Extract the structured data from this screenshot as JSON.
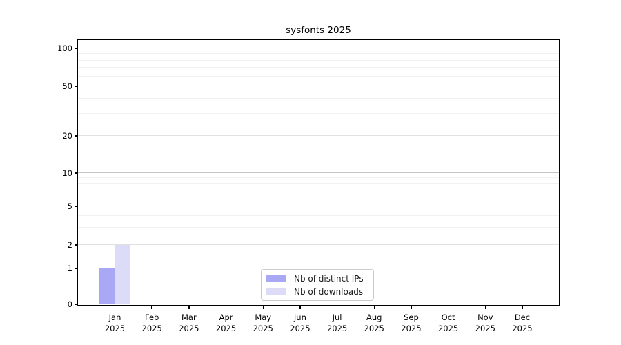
{
  "window": {
    "background": "#ffffff"
  },
  "chart_data": {
    "type": "bar",
    "title": "sysfonts 2025",
    "year": "2025",
    "categories": [
      "Jan",
      "Feb",
      "Mar",
      "Apr",
      "May",
      "Jun",
      "Jul",
      "Aug",
      "Sep",
      "Oct",
      "Nov",
      "Dec"
    ],
    "series": [
      {
        "name": "Nb of distinct IPs",
        "color": "#a8a8f4",
        "values": [
          1,
          0,
          0,
          0,
          0,
          0,
          0,
          0,
          0,
          0,
          0,
          0
        ]
      },
      {
        "name": "Nb of downloads",
        "color": "#dcdcf8",
        "values": [
          2,
          0,
          0,
          0,
          0,
          0,
          0,
          0,
          0,
          0,
          0,
          0
        ]
      }
    ],
    "xlabel": "",
    "ylabel": "",
    "yaxis": {
      "scale": "log1p",
      "ylim": [
        0,
        100
      ],
      "ticks": [
        0,
        1,
        2,
        5,
        10,
        20,
        50,
        100
      ],
      "tick_labels": [
        "0",
        "1",
        "2",
        "5",
        "10",
        "20",
        "50",
        "100"
      ],
      "minor_gridlines": [
        3,
        4,
        6,
        7,
        8,
        9,
        30,
        40,
        60,
        70,
        80,
        90
      ]
    },
    "grid": {
      "on": true,
      "major_values": [
        1,
        10,
        100
      ],
      "mid_values": [
        2,
        5,
        20,
        50
      ],
      "major_color": "#c5c5c5",
      "mid_color": "#e1e1e1",
      "minor_color": "#f1f1f1"
    },
    "legend": {
      "position": "bottom-center",
      "items": [
        "Nb of distinct IPs",
        "Nb of downloads"
      ]
    },
    "axis_color": "#000000",
    "text_color": "#000000"
  }
}
